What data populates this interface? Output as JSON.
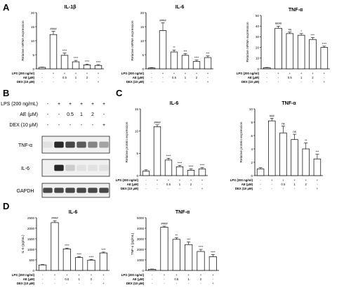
{
  "panel_letters": [
    "A",
    "B",
    "C",
    "D"
  ],
  "chart_data": [
    {
      "id": "il1b_mrna",
      "type": "bar",
      "title": "IL-1β",
      "ylabel": "Relative mRNA expression",
      "yticks": [
        "0",
        "5",
        "10",
        "15",
        "20"
      ],
      "ylim": [
        0,
        20
      ],
      "values": [
        0.5,
        12.2,
        4.8,
        2.5,
        1.4,
        1.2
      ],
      "errors": [
        0.1,
        1.2,
        0.8,
        0.5,
        0.3,
        0.3
      ],
      "stars": [
        "",
        "####",
        "****",
        "****",
        "****",
        "****"
      ],
      "treatments": [
        {
          "label": "LPS (200 ng/ml)",
          "values": [
            "-",
            "+",
            "+",
            "+",
            "+",
            "+"
          ]
        },
        {
          "label": "AE (μM)",
          "values": [
            "-",
            "-",
            "0.5",
            "1",
            "2",
            "-"
          ]
        },
        {
          "label": "DEX (10 μM)",
          "values": [
            "-",
            "-",
            "-",
            "-",
            "-",
            "+"
          ]
        }
      ]
    },
    {
      "id": "il6_mrna",
      "type": "bar",
      "title": "IL-6",
      "ylabel": "Relative mRNA expression",
      "yticks": [
        "0",
        "5",
        "10",
        "15",
        "20"
      ],
      "ylim": [
        0,
        20
      ],
      "values": [
        0.3,
        13.6,
        6.0,
        4.8,
        2.6,
        4.0
      ],
      "errors": [
        0.1,
        2.8,
        0.7,
        0.6,
        0.5,
        0.6
      ],
      "stars": [
        "",
        "####",
        "**",
        "***",
        "****",
        "***"
      ],
      "treatments": [
        {
          "label": "LPS (200 ng/ml)",
          "values": [
            "-",
            "+",
            "+",
            "+",
            "+",
            "+"
          ]
        },
        {
          "label": "AE (μM)",
          "values": [
            "-",
            "-",
            "0.5",
            "1",
            "2",
            "-"
          ]
        },
        {
          "label": "DEX (10 μM)",
          "values": [
            "-",
            "-",
            "-",
            "-",
            "-",
            "+"
          ]
        }
      ]
    },
    {
      "id": "tnfa_mrna",
      "type": "bar",
      "title": "TNF-α",
      "ylabel": "Relative mRNA expression",
      "yticks": [
        "0",
        "10",
        "20",
        "30",
        "40",
        "50"
      ],
      "ylim": [
        0,
        50
      ],
      "values": [
        1.0,
        38.0,
        33.0,
        31.5,
        27.5,
        20.0
      ],
      "errors": [
        0.3,
        2.0,
        1.5,
        1.5,
        1.8,
        1.2
      ],
      "stars": [
        "",
        "####",
        "ns",
        "*",
        "***",
        "****"
      ],
      "treatments": [
        {
          "label": "LPS (200 ng/ml)",
          "values": [
            "-",
            "+",
            "+",
            "+",
            "+",
            "+"
          ]
        },
        {
          "label": "AE (μM)",
          "values": [
            "-",
            "-",
            "0.5",
            "1",
            "2",
            "-"
          ]
        },
        {
          "label": "DEX (10 μM)",
          "values": [
            "-",
            "-",
            "-",
            "-",
            "-",
            "+"
          ]
        }
      ]
    },
    {
      "id": "il6_protein",
      "type": "bar",
      "title": "IL-6",
      "ylabel": "Relative protein expression",
      "yticks": [
        "0",
        "5",
        "10",
        "15"
      ],
      "ylim": [
        0,
        15
      ],
      "values": [
        1.0,
        11.0,
        3.5,
        2.0,
        1.2,
        1.5
      ],
      "errors": [
        0.3,
        0.4,
        0.4,
        0.3,
        0.3,
        0.3
      ],
      "stars": [
        "",
        "####",
        "****",
        "****",
        "****",
        "****"
      ],
      "treatments": [
        {
          "label": "LPS (200 ng/ml)",
          "values": [
            "-",
            "+",
            "+",
            "+",
            "+",
            "+"
          ]
        },
        {
          "label": "AE (μM)",
          "values": [
            "-",
            "-",
            "0.5",
            "1",
            "2",
            "-"
          ]
        },
        {
          "label": "DEX (10 μM)",
          "values": [
            "-",
            "-",
            "-",
            "-",
            "-",
            "+"
          ]
        }
      ]
    },
    {
      "id": "tnfa_protein",
      "type": "bar",
      "title": "TNF-α",
      "ylabel": "Relative protein expression",
      "yticks": [
        "0",
        "2",
        "4",
        "6",
        "8",
        "10"
      ],
      "ylim": [
        0,
        10
      ],
      "values": [
        1.0,
        8.2,
        6.4,
        5.4,
        4.0,
        2.5
      ],
      "errors": [
        0.2,
        0.4,
        1.0,
        0.8,
        0.9,
        0.7
      ],
      "stars": [
        "",
        "###",
        "ns",
        "ns",
        "**",
        "***"
      ],
      "treatments": [
        {
          "label": "LPS (200 ng/ml)",
          "values": [
            "-",
            "+",
            "+",
            "+",
            "+",
            "+"
          ]
        },
        {
          "label": "AE (μM)",
          "values": [
            "-",
            "-",
            "0.5",
            "1",
            "2",
            "-"
          ]
        },
        {
          "label": "DEX (10 μM)",
          "values": [
            "-",
            "-",
            "-",
            "-",
            "-",
            "+"
          ]
        }
      ]
    },
    {
      "id": "il6_elisa",
      "type": "bar",
      "title": "IL-6",
      "ylabel": "IL-6 (pg/mL)",
      "yticks": [
        "0",
        "500",
        "1000",
        "1500",
        "2000",
        "2500"
      ],
      "ylim": [
        0,
        2500
      ],
      "values": [
        260,
        2270,
        1020,
        610,
        490,
        830
      ],
      "errors": [
        20,
        90,
        40,
        40,
        30,
        40
      ],
      "stars": [
        "",
        "####",
        "****",
        "****",
        "****",
        "****"
      ],
      "treatments": [
        {
          "label": "LPS (200 ng/ml)",
          "values": [
            "-",
            "+",
            "+",
            "+",
            "+",
            "+"
          ]
        },
        {
          "label": "AE (μM)",
          "values": [
            "-",
            "-",
            "0.5",
            "1",
            "2",
            "-"
          ]
        },
        {
          "label": "DEX (10 μM)",
          "values": [
            "-",
            "-",
            "-",
            "-",
            "-",
            "+"
          ]
        }
      ]
    },
    {
      "id": "tnfa_elisa",
      "type": "bar",
      "title": "TNF-α",
      "ylabel": "TNF-α (pg/mL)",
      "yticks": [
        "0",
        "1000",
        "2000",
        "3000",
        "4000",
        "5000"
      ],
      "ylim": [
        0,
        5000
      ],
      "values": [
        100,
        4100,
        2950,
        2450,
        1800,
        1300
      ],
      "errors": [
        30,
        100,
        150,
        250,
        200,
        200
      ],
      "stars": [
        "",
        "####",
        "**",
        "***",
        "****",
        "****"
      ],
      "treatments": [
        {
          "label": "LPS (200 ng/ml)",
          "values": [
            "-",
            "+",
            "+",
            "+",
            "+",
            "+"
          ]
        },
        {
          "label": "AE (μM)",
          "values": [
            "-",
            "-",
            "0.5",
            "1",
            "2",
            "-"
          ]
        },
        {
          "label": "DEX (10 μM)",
          "values": [
            "-",
            "-",
            "-",
            "-",
            "-",
            "+"
          ]
        }
      ]
    }
  ],
  "western_blot": {
    "treatments": [
      {
        "label": "LPS (200 ng/mL)",
        "values": [
          "-",
          "+",
          "+",
          "+",
          "+",
          "+"
        ]
      },
      {
        "label": "AE (μM)",
        "values": [
          "-",
          "-",
          "0.5",
          "1",
          "2",
          "-"
        ]
      },
      {
        "label": "DEX (10 μM)",
        "values": [
          "-",
          "-",
          "-",
          "-",
          "-",
          "+"
        ]
      }
    ],
    "bands": [
      {
        "label": "TNF-α",
        "intensities": [
          0.05,
          0.95,
          0.8,
          0.7,
          0.5,
          0.35
        ]
      },
      {
        "label": "IL-6",
        "intensities": [
          0.0,
          0.95,
          0.15,
          0.05,
          0.05,
          0.05
        ]
      },
      {
        "label": "GAPDH",
        "intensities": [
          0.8,
          0.8,
          0.8,
          0.8,
          0.8,
          0.8
        ]
      }
    ]
  }
}
